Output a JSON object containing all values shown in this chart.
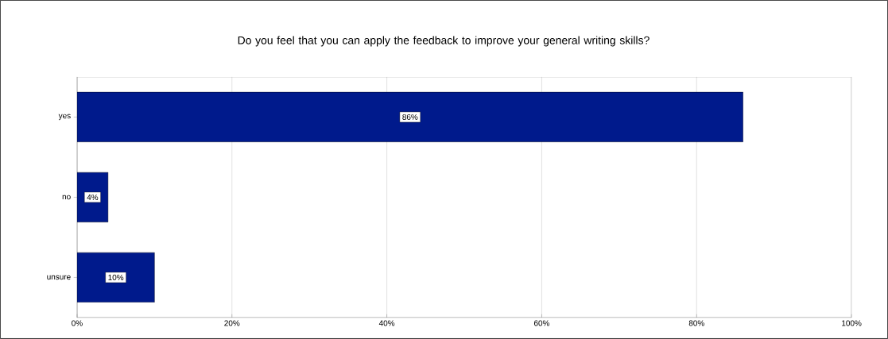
{
  "chart_data": {
    "type": "bar",
    "orientation": "horizontal",
    "title": "Do you feel that you can apply the feedback to improve your general writing skills?",
    "categories": [
      "yes",
      "no",
      "unsure"
    ],
    "values": [
      86,
      4,
      10
    ],
    "value_labels": [
      "86%",
      "4%",
      "10%"
    ],
    "color": "#001a8c",
    "xlim": [
      0,
      100
    ],
    "xticks": [
      {
        "value": 0,
        "label": "0%"
      },
      {
        "value": 20,
        "label": "20%"
      },
      {
        "value": 40,
        "label": "40%"
      },
      {
        "value": 60,
        "label": "60%"
      },
      {
        "value": 80,
        "label": "80%"
      },
      {
        "value": 100,
        "label": "100%"
      }
    ],
    "grid": "x"
  }
}
